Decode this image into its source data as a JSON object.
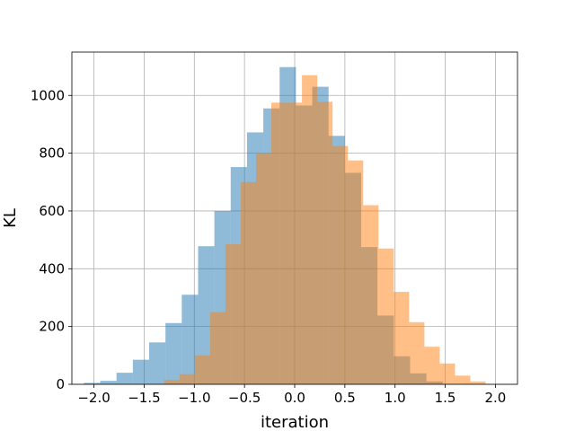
{
  "chart_data": {
    "type": "histogram",
    "xlabel": "iteration",
    "ylabel": "KL",
    "xlim": [
      -2.22,
      2.22
    ],
    "ylim": [
      0,
      1150
    ],
    "xticks": [
      -2.0,
      -1.5,
      -1.0,
      -0.5,
      0.0,
      0.5,
      1.0,
      1.5,
      2.0
    ],
    "xtick_labels": [
      "−2.0",
      "−1.5",
      "−1.0",
      "−0.5",
      "0.0",
      "0.5",
      "1.0",
      "1.5",
      "2.0"
    ],
    "yticks": [
      0,
      200,
      400,
      600,
      800,
      1000
    ],
    "ytick_labels": [
      "0",
      "200",
      "400",
      "600",
      "800",
      "1000"
    ],
    "grid": true,
    "series": [
      {
        "color": "#1f77b4",
        "alpha": 0.5,
        "bin_start": -2.1,
        "bin_width": 0.1625,
        "counts": [
          5,
          12,
          40,
          85,
          145,
          212,
          310,
          478,
          600,
          752,
          872,
          955,
          1098,
          965,
          1030,
          860,
          732,
          475,
          238,
          97,
          38,
          10
        ]
      },
      {
        "color": "#ff7f0e",
        "alpha": 0.5,
        "bin_start": -1.3,
        "bin_width": 0.1525,
        "counts": [
          15,
          35,
          100,
          250,
          485,
          700,
          800,
          975,
          975,
          1070,
          978,
          825,
          775,
          620,
          470,
          320,
          215,
          130,
          72,
          30,
          10
        ]
      }
    ]
  }
}
